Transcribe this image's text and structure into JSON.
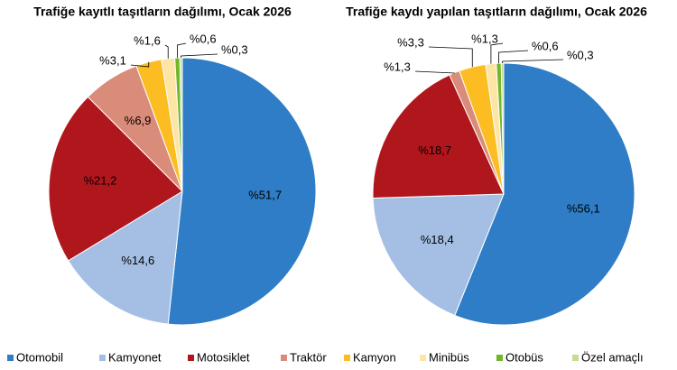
{
  "chart_data": [
    {
      "type": "pie",
      "title": "Trafiğe kayıtlı taşıtların dağılımı, Ocak 2026",
      "values": [
        51.7,
        14.6,
        21.2,
        6.9,
        3.1,
        1.6,
        0.6,
        0.3
      ],
      "value_labels": [
        "%51,7",
        "%14,6",
        "%21,2",
        "%6,9",
        "%3,1",
        "%1,6",
        "%0,6",
        "%0,3"
      ]
    },
    {
      "type": "pie",
      "title": "Trafiğe kaydı yapılan taşıtların dağılımı, Ocak 2026",
      "values": [
        56.1,
        18.4,
        18.7,
        1.3,
        3.3,
        1.3,
        0.6,
        0.3
      ],
      "value_labels": [
        "%56,1",
        "%18,4",
        "%18,7",
        "%1,3",
        "%3,3",
        "%1,3",
        "%0,6",
        "%0,3"
      ]
    }
  ],
  "legend": {
    "categories": [
      "Otomobil",
      "Kamyonet",
      "Motosiklet",
      "Traktör",
      "Kamyon",
      "Minibüs",
      "Otobüs",
      "Özel amaçlı"
    ],
    "colors": [
      "#2e7dc6",
      "#a4bfe3",
      "#b0171c",
      "#d98c79",
      "#fbbd22",
      "#fde5a5",
      "#72b72b",
      "#c5dc93"
    ]
  }
}
